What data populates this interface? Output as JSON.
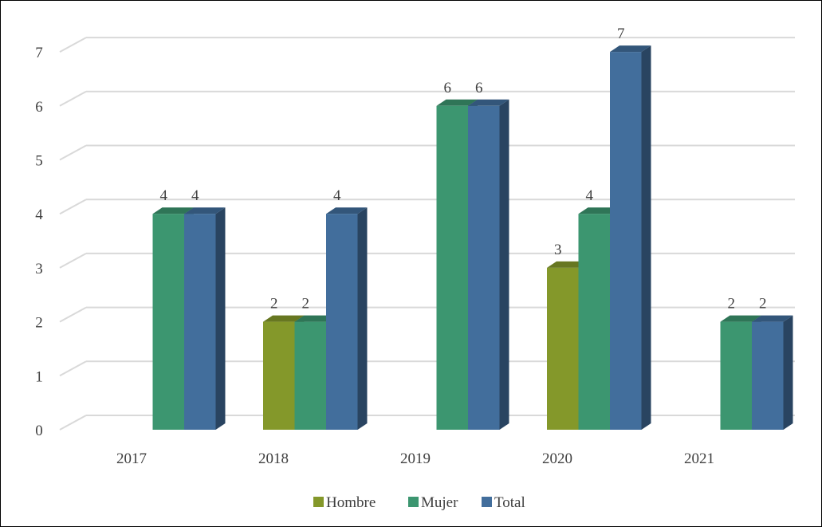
{
  "chart_data": {
    "type": "bar",
    "categories": [
      "2017",
      "2018",
      "2019",
      "2020",
      "2021"
    ],
    "series": [
      {
        "name": "Hombre",
        "values": [
          0,
          2,
          0,
          3,
          0
        ],
        "color": "#84982a"
      },
      {
        "name": "Mujer",
        "values": [
          4,
          2,
          6,
          4,
          2
        ],
        "color": "#3c9670"
      },
      {
        "name": "Total",
        "values": [
          4,
          4,
          6,
          7,
          2
        ],
        "color": "#426e9c"
      }
    ],
    "y_ticks": [
      "0",
      "1",
      "2",
      "3",
      "4",
      "5",
      "6",
      "7"
    ],
    "ylim": [
      0,
      7
    ],
    "grid": true,
    "legend": "bottom",
    "style": "3d-clustered-column"
  }
}
